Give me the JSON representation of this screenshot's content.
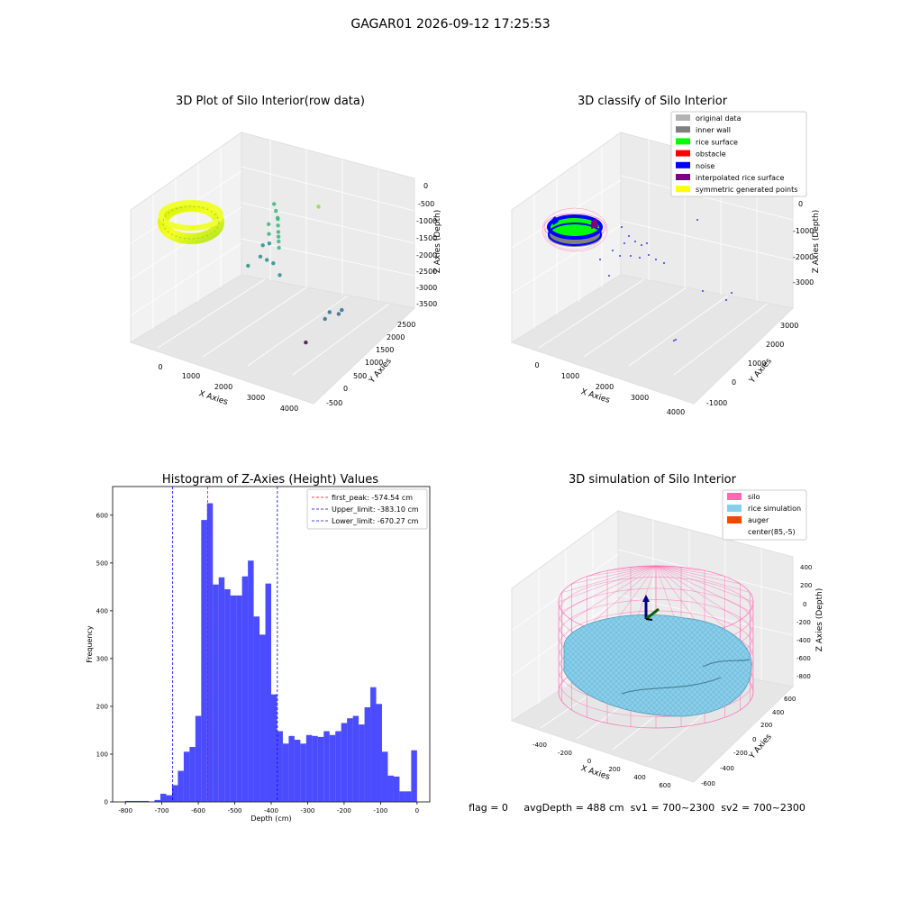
{
  "figure": {
    "suptitle": "GAGAR01 2026-09-12 17:25:53",
    "status_line": "flag = 0     avgDepth = 488 cm  sv1 = 700~2300  sv2 = 700~2300"
  },
  "colors": {
    "hist_bar": "#0000ff",
    "peak_line": "#ff0000",
    "limit_line": "#0000ff",
    "pane": "#f2f2f2",
    "silo_wire": "#ff69b4",
    "rice_surface": "#87ceeb",
    "auger": "#ff4500"
  },
  "chart_data": [
    {
      "type": "scatter",
      "subtype": "3d-scatter",
      "title": "3D Plot of Silo Interior(row data)",
      "xlabel": "X Axies",
      "ylabel": "Y Axies",
      "zlabel": "Z Axies (Depth)",
      "x_ticks": [
        "0",
        "1000",
        "2000",
        "3000",
        "4000"
      ],
      "y_ticks": [
        "-500",
        "0",
        "500",
        "1000",
        "1500",
        "2000",
        "2500"
      ],
      "z_ticks": [
        "0",
        "-500",
        "-1000",
        "-1500",
        "-2000",
        "-2500",
        "-3000",
        "-3500"
      ],
      "xlim": [
        -600,
        4300
      ],
      "ylim": [
        -700,
        2700
      ],
      "zlim": [
        -3600,
        100
      ],
      "colormap": "viridis (by depth)",
      "points": [
        {
          "x": 700,
          "y": 1900,
          "z": -1200
        },
        {
          "x": 850,
          "y": 1800,
          "z": -1300
        },
        {
          "x": 1000,
          "y": 1700,
          "z": -1400
        },
        {
          "x": 1100,
          "y": 1600,
          "z": -1350
        },
        {
          "x": 900,
          "y": 1500,
          "z": -1500
        },
        {
          "x": 1200,
          "y": 1500,
          "z": -1450
        },
        {
          "x": 1300,
          "y": 1400,
          "z": -1550
        },
        {
          "x": 1000,
          "y": 1400,
          "z": -1700
        },
        {
          "x": 1400,
          "y": 1300,
          "z": -1600
        },
        {
          "x": 1500,
          "y": 1200,
          "z": -1650
        },
        {
          "x": 1200,
          "y": 1200,
          "z": -1800
        },
        {
          "x": 1600,
          "y": 1100,
          "z": -1750
        },
        {
          "x": 900,
          "y": 1300,
          "z": -2000
        },
        {
          "x": 1100,
          "y": 1000,
          "z": -2100
        },
        {
          "x": 1400,
          "y": 900,
          "z": -2050
        },
        {
          "x": 1700,
          "y": 800,
          "z": -2000
        },
        {
          "x": 800,
          "y": 900,
          "z": -2400
        },
        {
          "x": 2000,
          "y": 700,
          "z": -2200
        },
        {
          "x": 2400,
          "y": 1600,
          "z": -600
        },
        {
          "x": 3500,
          "y": 800,
          "z": -2900
        },
        {
          "x": 3700,
          "y": 900,
          "z": -2950
        },
        {
          "x": 3750,
          "y": 950,
          "z": -2850
        },
        {
          "x": 3400,
          "y": 750,
          "z": -3100
        },
        {
          "x": 3300,
          "y": 200,
          "z": -3500
        }
      ]
    },
    {
      "type": "scatter",
      "subtype": "3d-classified-scatter",
      "title": "3D classify of Silo Interior",
      "xlabel": "X Axies",
      "ylabel": "Y Axies",
      "zlabel": "Z Axies (Depth)",
      "x_ticks": [
        "0",
        "1000",
        "2000",
        "3000",
        "4000"
      ],
      "y_ticks": [
        "-1000",
        "0",
        "1000",
        "2000",
        "3000"
      ],
      "z_ticks": [
        "0",
        "-1000",
        "-2000",
        "-3000"
      ],
      "legend": [
        {
          "label": "original data",
          "color": "#b3b3b3"
        },
        {
          "label": "inner wall",
          "color": "#808080"
        },
        {
          "label": "rice surface",
          "color": "#00ff00"
        },
        {
          "label": "obstacle",
          "color": "#ff0000"
        },
        {
          "label": "noise",
          "color": "#0000ff"
        },
        {
          "label": "interpolated rice surface",
          "color": "#800080"
        },
        {
          "label": "symmetric generated points",
          "color": "#ffff00"
        }
      ],
      "legend_loc": "top-right"
    },
    {
      "type": "bar",
      "subtype": "histogram",
      "title": "Histogram of Z-Axies (Height) Values",
      "xlabel": "Depth (cm)",
      "ylabel": "Frequency",
      "x_ticks": [
        -800,
        -700,
        -600,
        -500,
        -400,
        -300,
        -200,
        -100,
        0
      ],
      "y_ticks": [
        0,
        100,
        200,
        300,
        400,
        500,
        600
      ],
      "xlim": [
        -835,
        35
      ],
      "ylim": [
        0,
        660
      ],
      "bin_left": -800,
      "bin_width": 16,
      "values": [
        2,
        2,
        2,
        2,
        0,
        4,
        17,
        14,
        35,
        65,
        105,
        115,
        180,
        590,
        625,
        455,
        470,
        445,
        432,
        432,
        472,
        505,
        388,
        350,
        457,
        225,
        148,
        122,
        138,
        130,
        122,
        140,
        138,
        136,
        148,
        140,
        148,
        165,
        175,
        180,
        162,
        198,
        240,
        205,
        105,
        55,
        53,
        22,
        22,
        108
      ],
      "vlines": [
        {
          "label": "first_peak: -574.54 cm",
          "x": -574.54,
          "color": "#ff0000"
        },
        {
          "label": "Upper_limit: -383.10 cm",
          "x": -383.1,
          "color": "#0000ff"
        },
        {
          "label": "Lower_limit: -670.27 cm",
          "x": -670.27,
          "color": "#0000ff"
        }
      ],
      "legend_loc": "top-right"
    },
    {
      "type": "area",
      "subtype": "3d-surface-simulation",
      "title": "3D simulation of Silo Interior",
      "xlabel": "X Axies",
      "ylabel": "Y Axies",
      "zlabel": "Z Axies (Depth)",
      "x_ticks": [
        "-400",
        "-200",
        "0",
        "200",
        "400",
        "600"
      ],
      "y_ticks": [
        "-600",
        "-400",
        "-200",
        "0",
        "200",
        "400",
        "600"
      ],
      "z_ticks": [
        "400",
        "200",
        "0",
        "-200",
        "-400",
        "-600",
        "-800"
      ],
      "legend": [
        {
          "label": "silo",
          "color": "#ff69b4"
        },
        {
          "label": "rice simulation",
          "color": "#87ceeb"
        },
        {
          "label": "auger",
          "color": "#ff4500"
        },
        {
          "label": "center(85,-5)",
          "color": ""
        }
      ],
      "legend_loc": "top-right"
    }
  ]
}
